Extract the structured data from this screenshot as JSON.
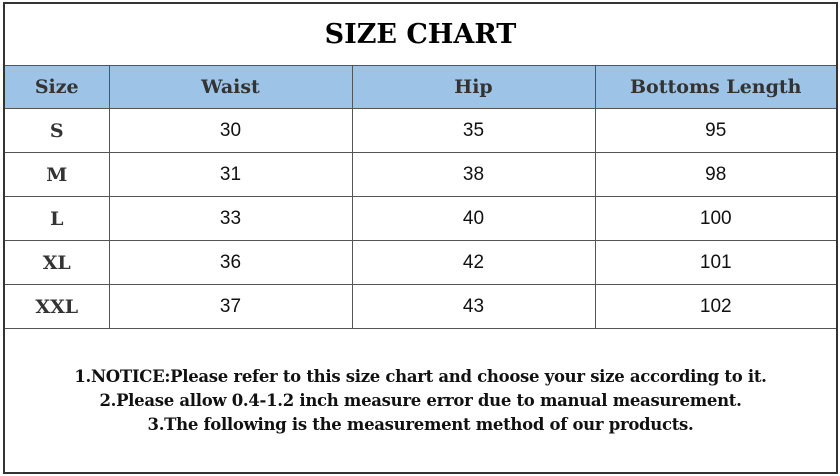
{
  "title": "SIZE CHART",
  "table": {
    "headers": [
      "Size",
      "Waist",
      "Hip",
      "Bottoms Length"
    ],
    "rows": [
      [
        "S",
        "30",
        "35",
        "95"
      ],
      [
        "M",
        "31",
        "38",
        "98"
      ],
      [
        "L",
        "33",
        "40",
        "100"
      ],
      [
        "XL",
        "36",
        "42",
        "101"
      ],
      [
        "XXL",
        "37",
        "43",
        "102"
      ]
    ]
  },
  "notes": [
    "1.NOTICE:Please refer to this size chart and choose your size according to it.",
    "2.Please allow 0.4-1.2 inch measure error due to manual measurement.",
    "3.The following is the measurement method of our products."
  ],
  "colors": {
    "header_bg": "#9dc3e6"
  }
}
